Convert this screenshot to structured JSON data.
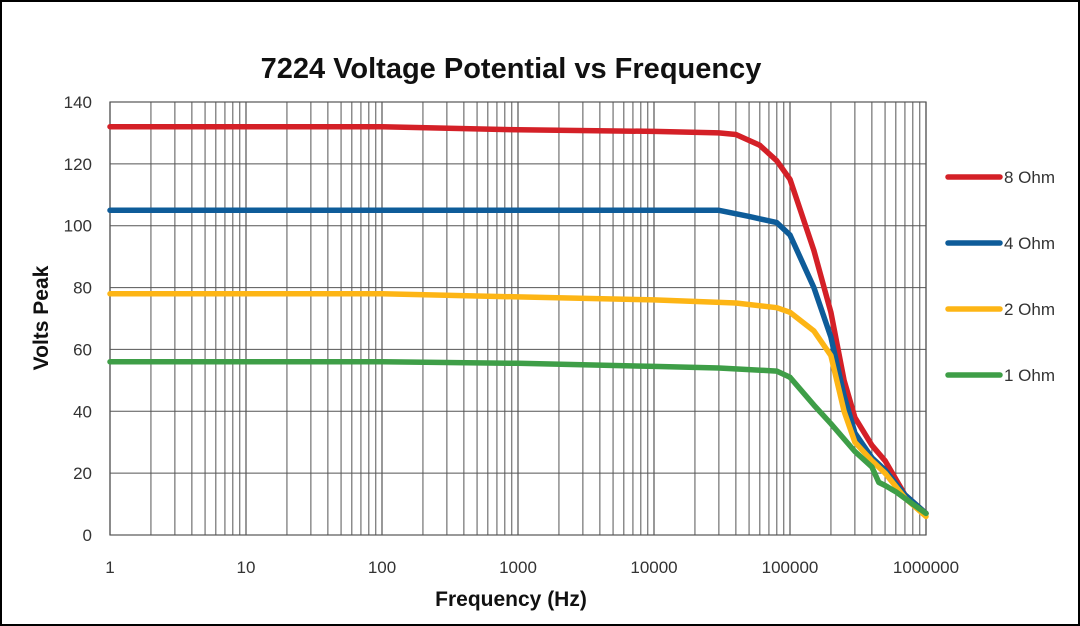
{
  "chart_data": {
    "type": "line",
    "title": "7224 Voltage Potential vs Frequency",
    "xlabel": "Frequency (Hz)",
    "ylabel": "Volts Peak",
    "x_scale": "log",
    "xlim": [
      1,
      1000000
    ],
    "ylim": [
      0,
      140
    ],
    "x_ticks": [
      "1",
      "10",
      "100",
      "1000",
      "10000",
      "100000",
      "1000000"
    ],
    "y_ticks": [
      "0",
      "20",
      "40",
      "60",
      "80",
      "100",
      "120",
      "140"
    ],
    "grid": true,
    "legend_position": "right",
    "series": [
      {
        "name": "8 Ohm",
        "color": "#D42027",
        "points": [
          [
            1,
            132
          ],
          [
            10,
            132
          ],
          [
            100,
            132
          ],
          [
            1000,
            131
          ],
          [
            10000,
            130.5
          ],
          [
            30000,
            130
          ],
          [
            40000,
            129.5
          ],
          [
            60000,
            126
          ],
          [
            80000,
            121
          ],
          [
            100000,
            115
          ],
          [
            150000,
            92
          ],
          [
            200000,
            72
          ],
          [
            250000,
            50
          ],
          [
            300000,
            38
          ],
          [
            400000,
            29
          ],
          [
            500000,
            24
          ],
          [
            700000,
            13
          ],
          [
            1000000,
            7
          ]
        ]
      },
      {
        "name": "4 Ohm",
        "color": "#0E5C99",
        "points": [
          [
            1,
            105
          ],
          [
            10,
            105
          ],
          [
            100,
            105
          ],
          [
            1000,
            105
          ],
          [
            10000,
            105
          ],
          [
            30000,
            105
          ],
          [
            50000,
            103
          ],
          [
            80000,
            101
          ],
          [
            100000,
            97
          ],
          [
            150000,
            80
          ],
          [
            200000,
            64
          ],
          [
            250000,
            45
          ],
          [
            300000,
            33
          ],
          [
            400000,
            25
          ],
          [
            500000,
            21
          ],
          [
            700000,
            13
          ],
          [
            1000000,
            7
          ]
        ]
      },
      {
        "name": "2 Ohm",
        "color": "#FDB515",
        "points": [
          [
            1,
            78
          ],
          [
            10,
            78
          ],
          [
            100,
            78
          ],
          [
            1000,
            77
          ],
          [
            10000,
            76
          ],
          [
            40000,
            75
          ],
          [
            80000,
            73.5
          ],
          [
            100000,
            72
          ],
          [
            150000,
            66
          ],
          [
            200000,
            58
          ],
          [
            250000,
            40
          ],
          [
            300000,
            30
          ],
          [
            400000,
            24
          ],
          [
            500000,
            20
          ],
          [
            700000,
            12
          ],
          [
            1000000,
            6
          ]
        ]
      },
      {
        "name": "1 Ohm",
        "color": "#3E9E47",
        "points": [
          [
            1,
            56
          ],
          [
            10,
            56
          ],
          [
            100,
            56
          ],
          [
            1000,
            55.5
          ],
          [
            10000,
            54.5
          ],
          [
            30000,
            54
          ],
          [
            80000,
            53
          ],
          [
            100000,
            51
          ],
          [
            150000,
            42
          ],
          [
            200000,
            36
          ],
          [
            300000,
            27
          ],
          [
            400000,
            22
          ],
          [
            450000,
            17
          ],
          [
            500000,
            16
          ],
          [
            600000,
            14
          ],
          [
            800000,
            10
          ],
          [
            1000000,
            7
          ]
        ]
      }
    ]
  }
}
